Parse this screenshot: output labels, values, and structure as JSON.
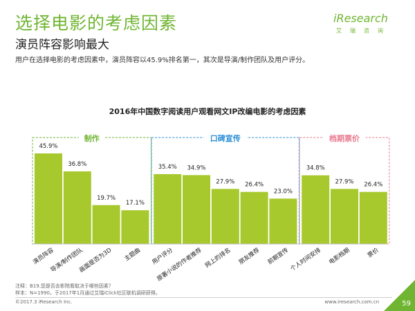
{
  "header": {
    "title": "选择电影的考虑因素",
    "subtitle": "演员阵容影响最大",
    "summary": "用户在选择电影的考虑因素中，演员阵容以45.9%排名第一，其次是导演/制作团队及用户评分。"
  },
  "logo": {
    "mark": "iResearch",
    "cn": "艾瑞咨询"
  },
  "chart_data": {
    "type": "bar",
    "title": "2016年中国数字阅读用户观看网文IP改编电影的考虑因素",
    "categories": [
      "演员阵容",
      "导演/制作团队",
      "画面是否为3D",
      "主题曲",
      "用户评分",
      "原著小说的作者推荐",
      "网上的排名",
      "朋友推荐",
      "前期宣传",
      "个人时间安排",
      "电影档期",
      "票价"
    ],
    "values": [
      45.9,
      36.8,
      19.7,
      17.1,
      35.4,
      34.9,
      27.9,
      26.4,
      23.0,
      34.8,
      27.9,
      26.4
    ],
    "data_labels": [
      "45.9%",
      "36.8%",
      "19.7%",
      "17.1%",
      "35.4%",
      "34.9%",
      "27.9%",
      "26.4%",
      "23.0%",
      "34.8%",
      "27.9%",
      "26.4%"
    ],
    "ylim": [
      0,
      55
    ],
    "bar_color": "#a8c92e",
    "groups": [
      {
        "label": "制作",
        "start": 0,
        "end": 3,
        "color": "#6fb531"
      },
      {
        "label": "口碑宣传",
        "start": 4,
        "end": 8,
        "color": "#2d8fd5"
      },
      {
        "label": "档期票价",
        "start": 9,
        "end": 11,
        "color": "#e87a8f"
      }
    ]
  },
  "footer": {
    "note": "注释：B19.您是否去影院看取决于哪些因素？",
    "sample": "样本：N=1990，于2017年1月通过艾瑞iClick社区联机调研获得。",
    "copyright": "©2017.3 iResearch Inc.",
    "website": "www.iresearch.com.cn",
    "page": "59"
  }
}
